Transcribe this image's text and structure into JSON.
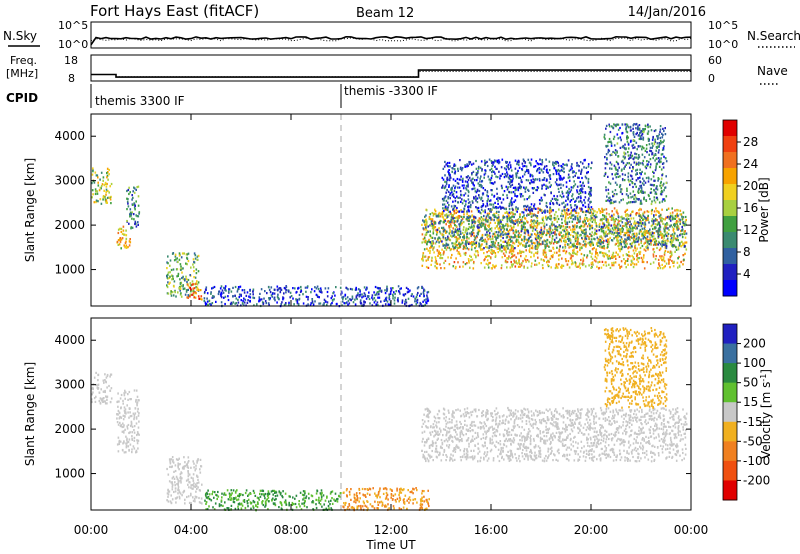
{
  "header": {
    "station": "Fort Hays East (fitACF)",
    "beam": "Beam 12",
    "date": "14/Jan/2016"
  },
  "noise_panel": {
    "left_label": "N.Sky",
    "right_label": "N.Search",
    "left_ticks": [
      "10^5",
      "10^0"
    ],
    "right_ticks": [
      "10^5",
      "10^0"
    ]
  },
  "freq_panel": {
    "left_label_line1": "Freq.",
    "left_label_line2": "[MHz]",
    "right_label": "Nave",
    "left_ticks": [
      "18",
      "8"
    ],
    "right_ticks": [
      "60",
      "0"
    ]
  },
  "cpid": {
    "label": "CPID",
    "modes": [
      "themis 3300 IF",
      "themis -3300 IF"
    ]
  },
  "chart_data": [
    {
      "type": "line",
      "panel": "noise",
      "title": "",
      "series": [
        {
          "name": "N.Sky",
          "style": "solid"
        },
        {
          "name": "N.Search",
          "style": "dotted"
        }
      ]
    },
    {
      "type": "line",
      "panel": "frequency / nave",
      "x_hours": [
        0,
        1,
        1,
        13.1,
        13.1,
        24
      ],
      "series": [
        {
          "name": "Freq.",
          "units": "MHz",
          "values": [
            10.5,
            10.5,
            9.5,
            9.5,
            12.2,
            12.2
          ]
        },
        {
          "name": "Nave",
          "values": [
            15,
            15,
            10,
            10,
            22,
            22
          ]
        }
      ]
    },
    {
      "type": "heatmap",
      "panel": "power",
      "ylabel": "Slant Range [km]",
      "yticks": [
        "4000",
        "3000",
        "2000",
        "1000"
      ],
      "ylim": [
        180,
        4500
      ],
      "xlim": [
        0,
        24
      ],
      "colorbar": {
        "label": "Power [dB]",
        "ticks": [
          "28",
          "24",
          "20",
          "16",
          "12",
          "8",
          "4"
        ],
        "colors": [
          "#e00000",
          "#f04010",
          "#f07020",
          "#f7a300",
          "#f0d020",
          "#a8d040",
          "#40a040",
          "#3a8a70",
          "#3060a0",
          "#2020c0",
          "#0000ff"
        ]
      },
      "regions": [
        {
          "t0": 0.0,
          "t1": 0.8,
          "r0": 2500,
          "r1": 3300,
          "power": 16
        },
        {
          "t0": 1.0,
          "t1": 1.6,
          "r0": 1500,
          "r1": 2000,
          "power": 20
        },
        {
          "t0": 1.4,
          "t1": 1.9,
          "r0": 1950,
          "r1": 2900,
          "power": 10
        },
        {
          "t0": 3.0,
          "t1": 4.3,
          "r0": 400,
          "r1": 1400,
          "power": 14
        },
        {
          "t0": 3.8,
          "t1": 4.4,
          "r0": 350,
          "r1": 700,
          "power": 25
        },
        {
          "t0": 4.5,
          "t1": 13.5,
          "r0": 200,
          "r1": 650,
          "power": 6
        },
        {
          "t0": 13.2,
          "t1": 23.8,
          "r0": 1050,
          "r1": 2400,
          "power": 20
        },
        {
          "t0": 13.2,
          "t1": 23.8,
          "r0": 1500,
          "r1": 2250,
          "power": 11
        },
        {
          "t0": 14.0,
          "t1": 20.0,
          "r0": 2300,
          "r1": 3500,
          "power": 6
        },
        {
          "t0": 20.5,
          "t1": 23.0,
          "r0": 2500,
          "r1": 4300,
          "power": 9
        }
      ]
    },
    {
      "type": "heatmap",
      "panel": "velocity",
      "ylabel": "Slant Range [km]",
      "yticks": [
        "4000",
        "3000",
        "2000",
        "1000"
      ],
      "ylim": [
        180,
        4500
      ],
      "xlabel": "Time UT",
      "xticks": [
        "00:00",
        "04:00",
        "08:00",
        "12:00",
        "16:00",
        "20:00",
        "00:00"
      ],
      "xlim": [
        0,
        24
      ],
      "colorbar": {
        "label": "Velocity [m s^-1]",
        "ticks": [
          "200",
          "100",
          "50",
          "15",
          "-15",
          "-50",
          "-100",
          "-200"
        ],
        "colors": [
          "#2020c0",
          "#3a70a0",
          "#2a8a40",
          "#60c030",
          "#c8c8c8",
          "#f0b020",
          "#f08020",
          "#f05010",
          "#e00000"
        ]
      },
      "regions": [
        {
          "t0": 0.0,
          "t1": 0.8,
          "r0": 2600,
          "r1": 3300,
          "velocity": 0
        },
        {
          "t0": 1.0,
          "t1": 1.9,
          "r0": 1500,
          "r1": 2900,
          "velocity": 0
        },
        {
          "t0": 3.0,
          "t1": 4.4,
          "r0": 350,
          "r1": 1400,
          "velocity": 0
        },
        {
          "t0": 4.5,
          "t1": 10.0,
          "r0": 200,
          "r1": 650,
          "velocity": 30
        },
        {
          "t0": 10.0,
          "t1": 13.5,
          "r0": 200,
          "r1": 700,
          "velocity": -40
        },
        {
          "t0": 13.2,
          "t1": 23.8,
          "r0": 1300,
          "r1": 2500,
          "velocity": 0
        },
        {
          "t0": 20.5,
          "t1": 23.0,
          "r0": 2500,
          "r1": 4300,
          "velocity": -30
        }
      ]
    }
  ]
}
